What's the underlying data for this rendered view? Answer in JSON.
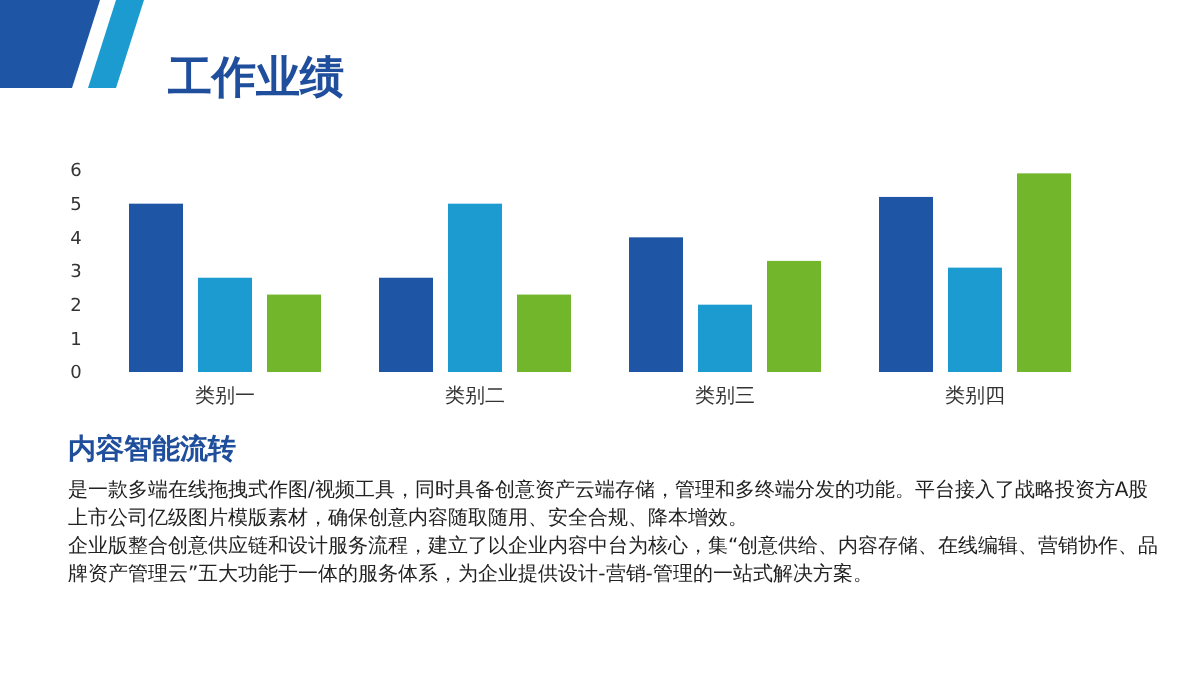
{
  "chart_data": {
    "type": "bar",
    "title": "工作业绩",
    "categories": [
      "类别一",
      "类别二",
      "类别三",
      "类别四"
    ],
    "series": [
      {
        "color": "#1f55a5",
        "values": [
          5,
          2.8,
          4,
          5.2
        ]
      },
      {
        "color": "#1b9bd0",
        "values": [
          2.8,
          5,
          2,
          3.1
        ]
      },
      {
        "color": "#72b62c",
        "values": [
          2.3,
          2.3,
          3.3,
          5.9
        ]
      }
    ],
    "ylim": [
      0,
      6
    ],
    "yticks": [
      0,
      1,
      2,
      3,
      4,
      5,
      6
    ],
    "grid": false,
    "annotations": [
      "内容智能流转",
      "是一款多端在线拖拽式作图/视频工具，同时具备创意资产云端存储，管理和多终端分发的功能。平台接入了战略投资方A股上市公司亿级图片模版素材，确保创意内容随取随用、安全合规、降本增效。",
      "企业版整合创意供应链和设计服务流程，建立了以企业内容中台为核心，集“创意供给、内容存储、在线编辑、营销协作、品牌资产管理云”五大功能于一体的服务体系，为企业提供设计-营销-管理的一站式解决方案。"
    ]
  }
}
